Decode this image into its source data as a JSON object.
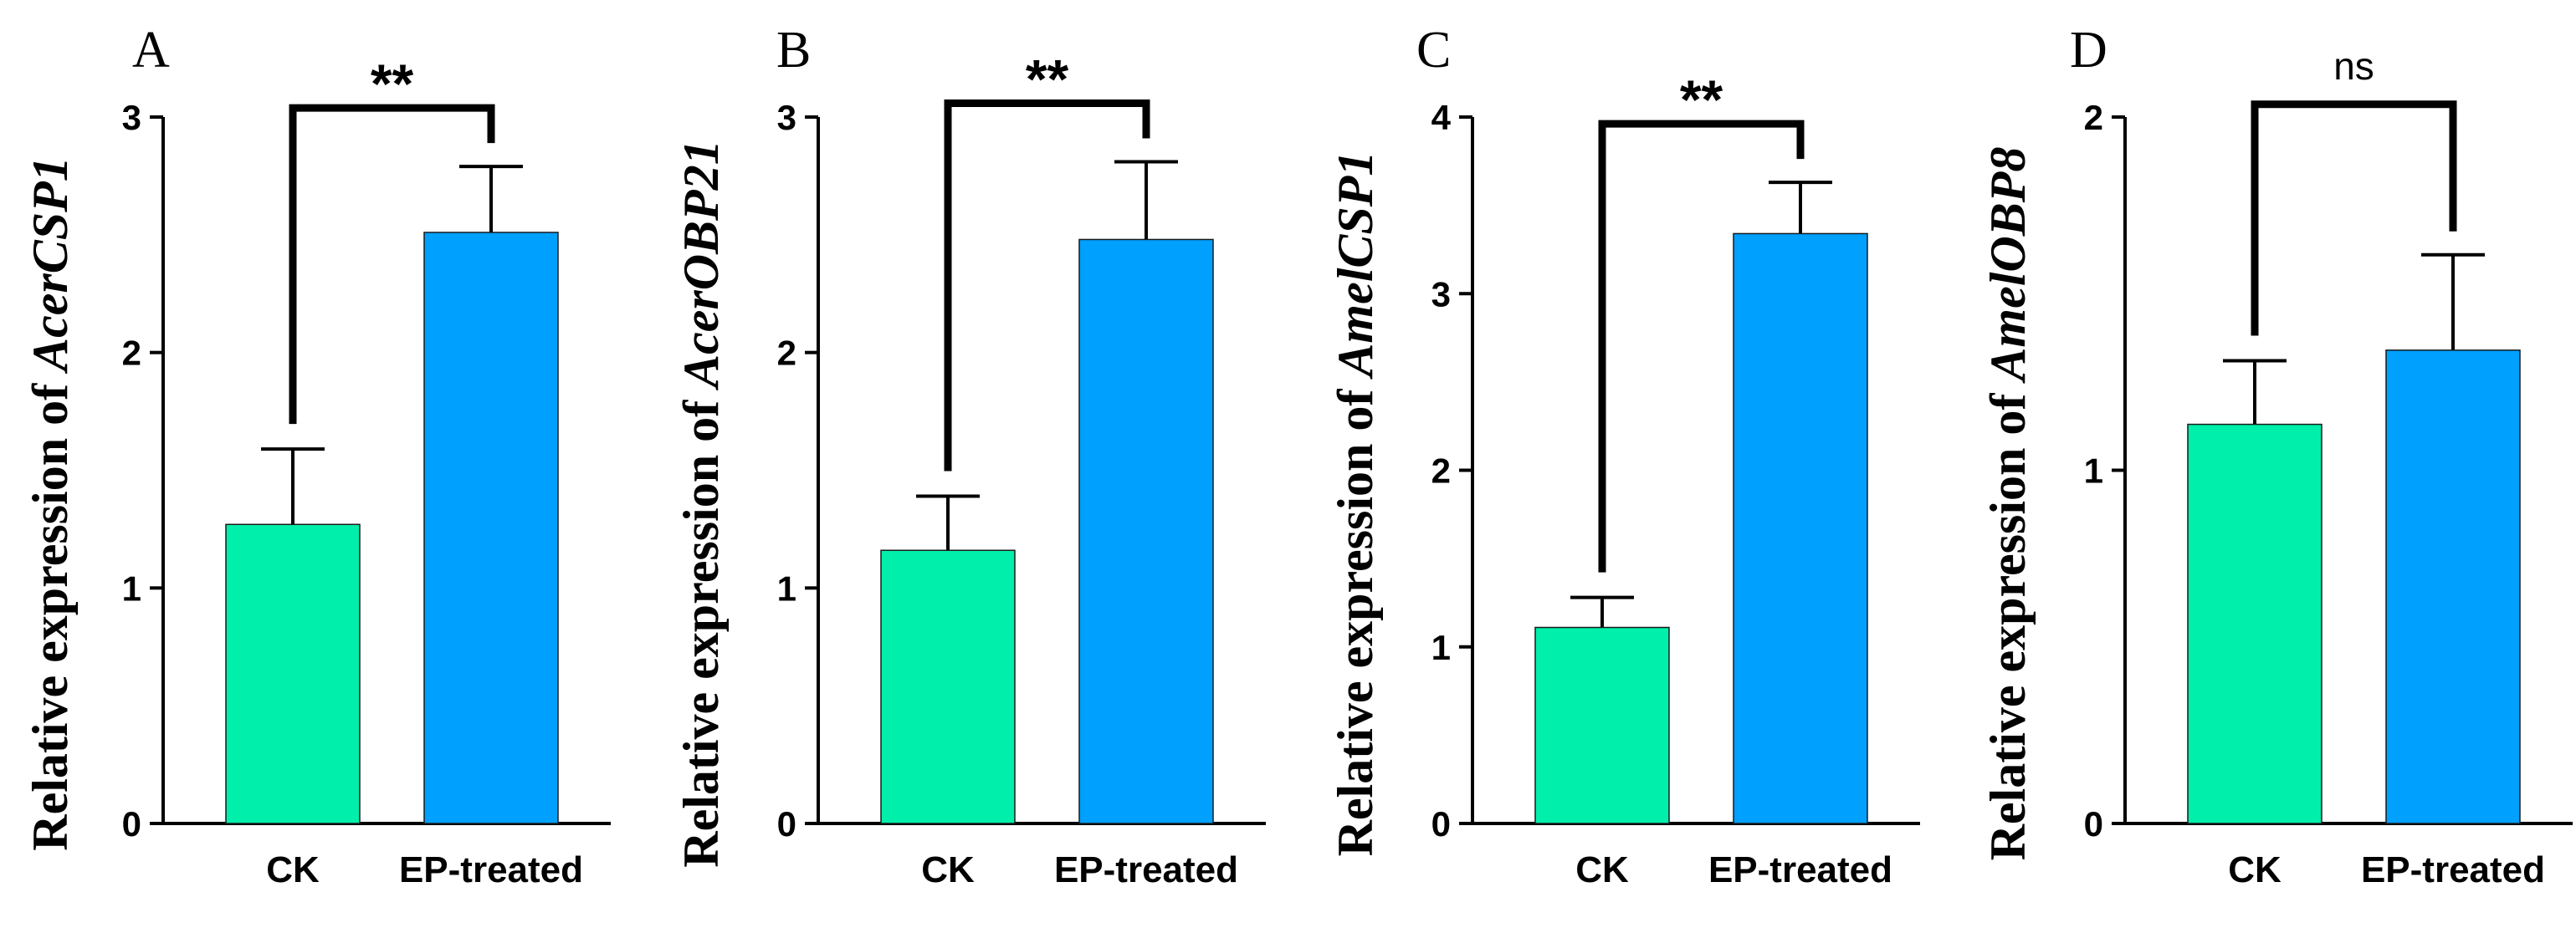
{
  "colors": {
    "ck": "#00EFAA",
    "ep": "#00A0FF",
    "axis": "#000000"
  },
  "chart_data": [
    {
      "type": "bar",
      "panel": "A",
      "ylabel_prefix": "Relative expression of ",
      "gene": "AcerCSP1",
      "categories": [
        "CK",
        "EP-treated"
      ],
      "values": [
        1.27,
        2.51
      ],
      "errors": [
        0.32,
        0.28
      ],
      "ylim": [
        0,
        3
      ],
      "yticks": [
        0,
        1,
        2,
        3
      ],
      "significance": "**"
    },
    {
      "type": "bar",
      "panel": "B",
      "ylabel_prefix": "Relative expression of ",
      "gene": "AcerOBP21",
      "categories": [
        "CK",
        "EP-treated"
      ],
      "values": [
        1.16,
        2.48
      ],
      "errors": [
        0.23,
        0.33
      ],
      "ylim": [
        0,
        3
      ],
      "yticks": [
        0,
        1,
        2,
        3
      ],
      "significance": "**"
    },
    {
      "type": "bar",
      "panel": "C",
      "ylabel_prefix": "Relative expression of ",
      "gene": "AmelCSP1",
      "categories": [
        "CK",
        "EP-treated"
      ],
      "values": [
        1.11,
        3.34
      ],
      "errors": [
        0.17,
        0.29
      ],
      "ylim": [
        0,
        4
      ],
      "yticks": [
        0,
        1,
        2,
        3,
        4
      ],
      "significance": "**"
    },
    {
      "type": "bar",
      "panel": "D",
      "ylabel_prefix": "Relative expression of ",
      "gene": "AmelOBP8",
      "categories": [
        "CK",
        "EP-treated"
      ],
      "values": [
        1.13,
        1.34
      ],
      "errors": [
        0.18,
        0.27
      ],
      "ylim": [
        0,
        2
      ],
      "yticks": [
        0,
        1,
        2
      ],
      "significance": "ns"
    }
  ]
}
